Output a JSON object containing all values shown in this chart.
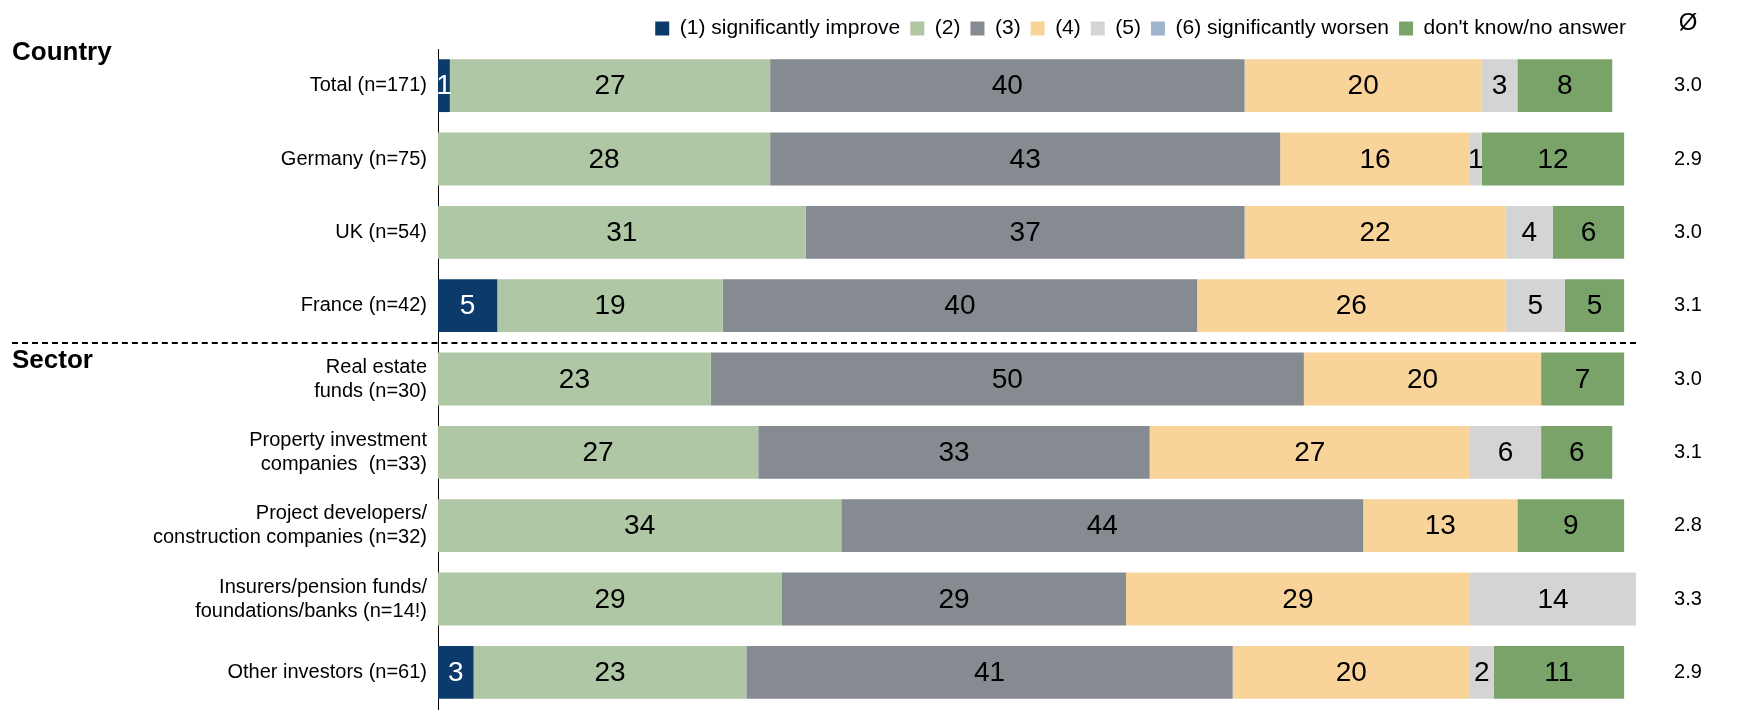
{
  "chart_data": {
    "type": "bar",
    "orientation": "horizontal",
    "stacked": true,
    "data_labels": true,
    "legend": "top",
    "categories": [
      "Total (n=171)",
      "Germany (n=75)",
      "UK (n=54)",
      "France (n=42)",
      "Real estate\nfunds (n=30)",
      "Property investment\ncompanies  (n=33)",
      "Project developers/\nconstruction companies (n=32)",
      "Insurers/pension funds/\nfoundations/banks (n=14!)",
      "Other investors (n=61)"
    ],
    "series": [
      {
        "name": "(1) significantly improve",
        "color": "#0b3a6b",
        "values": [
          1,
          null,
          null,
          5,
          null,
          null,
          null,
          null,
          3
        ]
      },
      {
        "name": "(2)",
        "color": "#afc7a4",
        "values": [
          27,
          28,
          31,
          19,
          23,
          27,
          34,
          29,
          23
        ]
      },
      {
        "name": "(3)",
        "color": "#868a91",
        "values": [
          40,
          43,
          37,
          40,
          50,
          33,
          44,
          29,
          41
        ]
      },
      {
        "name": "(4)",
        "color": "#f8d49a",
        "values": [
          20,
          16,
          22,
          26,
          20,
          27,
          13,
          29,
          20
        ]
      },
      {
        "name": "(5)",
        "color": "#d4d4d4",
        "values": [
          3,
          1,
          4,
          5,
          null,
          6,
          null,
          14,
          2
        ]
      },
      {
        "name": "(6) significantly worsen",
        "color": "#9fb3cc",
        "values": [
          null,
          null,
          null,
          null,
          null,
          null,
          null,
          null,
          null
        ]
      },
      {
        "name": "don't know/no answer",
        "color": "#7aa36a",
        "values": [
          8,
          12,
          6,
          5,
          7,
          6,
          9,
          null,
          11
        ]
      }
    ],
    "annotations": [
      "Country",
      "Sector",
      "Ø",
      "3.0",
      "2.9",
      "3.0",
      "3.1",
      "3.0",
      "3.1",
      "2.8",
      "3.3",
      "2.9"
    ]
  }
}
